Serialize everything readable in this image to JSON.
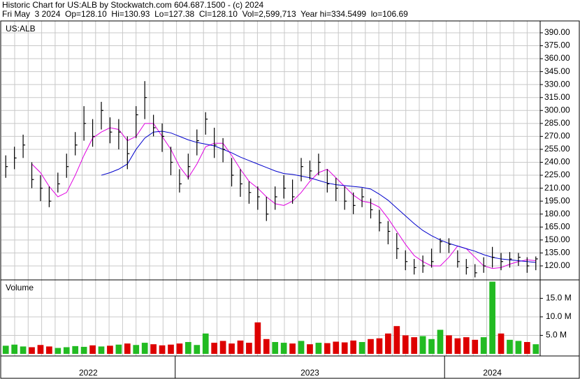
{
  "chart_data": {
    "type": "ohlc",
    "title": "Historic Chart for US:ALB by Stockwatch.com 604.687.1500 - (c) 2024",
    "subtitle": "Fri May  3 2024  Op=128.10  Hi=130.93  Lo=127.38  Cl=128.10  Vol=2,599,713  Year hi=334.5499  lo=106.69",
    "symbol": "US:ALB",
    "volume_label": "Volume",
    "year_starts": [
      {
        "value": 0,
        "label": "2022"
      },
      {
        "value": 20,
        "label": "2023"
      },
      {
        "value": 51,
        "label": "2024"
      }
    ],
    "high": [
      248,
      258,
      272,
      240,
      225,
      212,
      228,
      250,
      275,
      305,
      290,
      310,
      292,
      290,
      270,
      305,
      334,
      295,
      285,
      258,
      232,
      250,
      278,
      298,
      280,
      268,
      245,
      232,
      218,
      212,
      200,
      212,
      225,
      220,
      245,
      242,
      250,
      232,
      222,
      212,
      205,
      210,
      198,
      185,
      172,
      158,
      138,
      128,
      132,
      140,
      152,
      152,
      138,
      128,
      122,
      130,
      142,
      135,
      136,
      135,
      130,
      130.93
    ],
    "low": [
      222,
      232,
      245,
      210,
      195,
      188,
      205,
      222,
      248,
      265,
      258,
      278,
      262,
      255,
      232,
      268,
      290,
      270,
      252,
      225,
      205,
      220,
      248,
      272,
      245,
      240,
      212,
      200,
      192,
      185,
      172,
      185,
      198,
      192,
      218,
      220,
      225,
      205,
      195,
      185,
      180,
      188,
      175,
      160,
      145,
      128,
      115,
      110,
      112,
      118,
      135,
      135,
      118,
      110,
      106.69,
      112,
      118,
      115,
      118,
      120,
      112,
      115
    ],
    "close": [
      235,
      245,
      260,
      220,
      210,
      195,
      215,
      235,
      260,
      285,
      270,
      300,
      275,
      275,
      250,
      295,
      315,
      280,
      270,
      240,
      215,
      235,
      265,
      290,
      260,
      255,
      225,
      215,
      205,
      200,
      180,
      200,
      210,
      200,
      235,
      230,
      240,
      215,
      210,
      195,
      190,
      200,
      185,
      170,
      160,
      140,
      125,
      118,
      120,
      125,
      148,
      145,
      125,
      118,
      112,
      120,
      130,
      125,
      128,
      130,
      120,
      128.1
    ],
    "bar_color": "#000000",
    "series": [
      {
        "color": "#e000e0",
        "values": [
          null,
          null,
          null,
          238,
          228,
          212,
          200,
          205,
          225,
          248,
          268,
          275,
          280,
          278,
          265,
          270,
          285,
          285,
          270,
          255,
          235,
          222,
          238,
          258,
          262,
          262,
          248,
          232,
          218,
          210,
          200,
          192,
          190,
          195,
          205,
          218,
          228,
          232,
          222,
          212,
          202,
          195,
          193,
          188,
          175,
          160,
          145,
          132,
          125,
          120,
          120,
          130,
          143,
          140,
          130,
          120,
          117,
          118,
          122,
          125,
          127,
          126
        ]
      },
      {
        "color": "#0000cc",
        "values": [
          null,
          null,
          null,
          null,
          null,
          null,
          null,
          null,
          null,
          null,
          null,
          225,
          228,
          232,
          238,
          255,
          268,
          275,
          276,
          274,
          270,
          266,
          263,
          261,
          259,
          255,
          251,
          246,
          242,
          238,
          234,
          230,
          227,
          226,
          224,
          222,
          219,
          216,
          214,
          213,
          212,
          211,
          209,
          203,
          196,
          187,
          178,
          169,
          161,
          155,
          150,
          146,
          143,
          140,
          137,
          133,
          130,
          128,
          127,
          126,
          125,
          124
        ]
      }
    ],
    "volume": [
      2.2,
      2.5,
      2.0,
      1.8,
      2.4,
      2.0,
      1.6,
      1.8,
      2.1,
      1.9,
      2.3,
      2.0,
      2.2,
      2.5,
      2.8,
      2.4,
      3.0,
      2.6,
      2.3,
      2.5,
      2.8,
      3.2,
      2.4,
      5.5,
      3.0,
      3.5,
      2.8,
      3.6,
      3.0,
      8.5,
      4.0,
      3.2,
      3.0,
      2.8,
      3.5,
      2.6,
      3.0,
      2.9,
      3.3,
      3.1,
      3.6,
      3.2,
      4.0,
      4.2,
      5.5,
      7.5,
      5.0,
      4.5,
      4.8,
      4.0,
      6.5,
      5.0,
      4.2,
      4.5,
      3.8,
      4.5,
      19.5,
      5.5,
      3.8,
      3.5,
      3.2,
      2.6
    ],
    "up_color": "#22bb22",
    "down_color": "#dd0000",
    "ylim": [
      104.6,
      403.7
    ],
    "yticks": [
      {
        "value": 120,
        "label": "120.00"
      },
      {
        "value": 135,
        "label": "135.00"
      },
      {
        "value": 150,
        "label": "150.00"
      },
      {
        "value": 165,
        "label": "165.00"
      },
      {
        "value": 180,
        "label": "180.00"
      },
      {
        "value": 195,
        "label": "195.00"
      },
      {
        "value": 210,
        "label": "210.00"
      },
      {
        "value": 225,
        "label": "225.00"
      },
      {
        "value": 240,
        "label": "240.00"
      },
      {
        "value": 255,
        "label": "255.00"
      },
      {
        "value": 270,
        "label": "270.00"
      },
      {
        "value": 285,
        "label": "285.00"
      },
      {
        "value": 300,
        "label": "300.00"
      },
      {
        "value": 315,
        "label": "315.00"
      },
      {
        "value": 330,
        "label": "330.00"
      },
      {
        "value": 345,
        "label": "345.00"
      },
      {
        "value": 360,
        "label": "360.00"
      },
      {
        "value": 375,
        "label": "375.00"
      },
      {
        "value": 390,
        "label": "390.00"
      }
    ],
    "vlim": [
      0,
      19.6
    ],
    "vticks": [
      {
        "value": 5,
        "label": "5.0 M"
      },
      {
        "value": 10,
        "label": "10.0 M"
      },
      {
        "value": 15,
        "label": "15.0 M"
      }
    ],
    "grid": true
  }
}
